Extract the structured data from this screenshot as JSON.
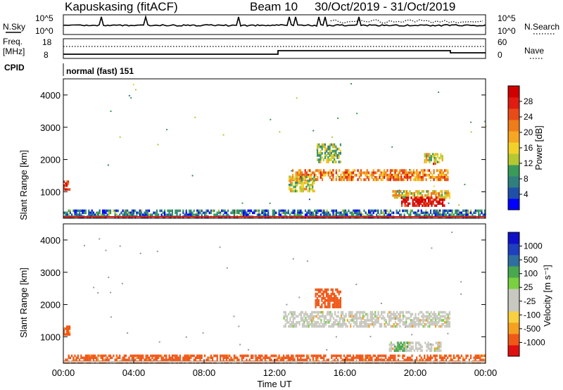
{
  "header": {
    "station": "Kapuskasing (fitACF)",
    "beam": "Beam 10",
    "date_range": "30/Oct/2019 - 31/Oct/2019"
  },
  "nsky_panel": {
    "left_label": "N.Sky",
    "right_label": "N.Search",
    "left_ticks": [
      "10^5",
      "10^0"
    ],
    "right_ticks": [
      "10^5",
      "10^0"
    ]
  },
  "freq_panel": {
    "left_label_top": "Freq.",
    "left_label_unit": "[MHz]",
    "right_label": "Nave",
    "left_ticks": [
      "18",
      "8"
    ],
    "right_ticks": [
      "60",
      "0"
    ]
  },
  "cpid": {
    "label": "CPID",
    "mode": "normal (fast) 151"
  },
  "colors": {
    "power": [
      "#0000ff",
      "#1f4fa8",
      "#2f7f7f",
      "#3a9a5a",
      "#b5c832",
      "#f2d22a",
      "#f5a623",
      "#f07b1a",
      "#e84b17",
      "#e01b12",
      "#d00000"
    ],
    "velocity": [
      "#e01010",
      "#f05818",
      "#f5a020",
      "#f8d040",
      "#c8c8c0",
      "#c8c8c0",
      "#7ad040",
      "#48a850",
      "#2f6f9f",
      "#1f3fbf",
      "#1010c8"
    ],
    "ground_scatter": "#bdbdb5"
  },
  "chart_data": [
    {
      "type": "heatmap",
      "name": "Power panel",
      "ylabel": "Slant Range [km]",
      "xlabel": "",
      "yticks": [
        "1000",
        "2000",
        "3000",
        "4000"
      ],
      "ylim": [
        180,
        4500
      ],
      "xlim_hours": [
        0,
        24
      ],
      "colorbar_label": "Power [dB]",
      "colorbar_ticks": [
        "4",
        "8",
        "12",
        "16",
        "20",
        "24",
        "28"
      ],
      "colorbar_range": [
        0,
        30
      ],
      "regions": [
        {
          "t0": 0.0,
          "t1": 24.0,
          "r0": 200,
          "r1": 450,
          "value": 6
        },
        {
          "t0": 13.0,
          "t1": 21.9,
          "r0": 1350,
          "r1": 1700,
          "value": 20
        },
        {
          "t0": 12.8,
          "t1": 14.3,
          "r0": 1000,
          "r1": 1500,
          "value": 14
        },
        {
          "t0": 14.4,
          "t1": 15.8,
          "r0": 1900,
          "r1": 2500,
          "value": 12
        },
        {
          "t0": 18.7,
          "t1": 22.0,
          "r0": 800,
          "r1": 1050,
          "value": 16
        },
        {
          "t0": 19.2,
          "t1": 21.7,
          "r0": 550,
          "r1": 850,
          "value": 28
        },
        {
          "t0": 0.0,
          "t1": 0.4,
          "r0": 1050,
          "r1": 1350,
          "value": 26
        },
        {
          "t0": 20.5,
          "t1": 21.6,
          "r0": 1900,
          "r1": 2200,
          "value": 14
        },
        {
          "t0": 21.0,
          "t1": 21.2,
          "r0": 1800,
          "r1": 1900,
          "value": 28
        }
      ]
    },
    {
      "type": "heatmap",
      "name": "Velocity panel",
      "ylabel": "Slant Range [km]",
      "xlabel": "Time UT",
      "xticks": [
        "00:00",
        "04:00",
        "08:00",
        "12:00",
        "16:00",
        "20:00",
        "00:00"
      ],
      "yticks": [
        "1000",
        "2000",
        "3000",
        "4000"
      ],
      "ylim": [
        180,
        4500
      ],
      "xlim_hours": [
        0,
        24
      ],
      "colorbar_label": "Velocity [m s⁻¹]",
      "colorbar_ticks": [
        "1000",
        "500",
        "100",
        "25",
        "-25",
        "-100",
        "-500",
        "-1000"
      ],
      "regions": [
        {
          "t0": 0.0,
          "t1": 24.0,
          "r0": 200,
          "r1": 450,
          "value": -100
        },
        {
          "t0": 12.5,
          "t1": 22.0,
          "r0": 1300,
          "r1": 1800,
          "value": 0
        },
        {
          "t0": 14.3,
          "t1": 15.8,
          "r0": 1900,
          "r1": 2500,
          "value": -300
        },
        {
          "t0": 18.5,
          "t1": 21.5,
          "r0": 550,
          "r1": 850,
          "value": 0
        },
        {
          "t0": 18.8,
          "t1": 19.6,
          "r0": 550,
          "r1": 850,
          "value": 100
        },
        {
          "t0": 0.0,
          "t1": 0.4,
          "r0": 1050,
          "r1": 1350,
          "value": -100
        }
      ]
    }
  ]
}
